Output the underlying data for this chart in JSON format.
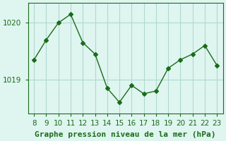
{
  "x": [
    8,
    9,
    10,
    11,
    12,
    13,
    14,
    15,
    16,
    17,
    18,
    19,
    20,
    21,
    22,
    23
  ],
  "y": [
    1019.35,
    1019.7,
    1020.0,
    1020.15,
    1019.65,
    1019.45,
    1018.85,
    1018.6,
    1018.9,
    1018.75,
    1018.8,
    1019.2,
    1019.35,
    1019.45,
    1019.6,
    1019.25
  ],
  "line_color": "#1a6b1a",
  "marker": "D",
  "marker_size": 3,
  "bg_color": "#dff5f0",
  "grid_color": "#b0d8d0",
  "xlabel": "Graphe pression niveau de la mer (hPa)",
  "xlabel_color": "#1a6b1a",
  "tick_color": "#1a6b1a",
  "axis_color": "#1a6b1a",
  "ylim": [
    1018.4,
    1020.35
  ],
  "xlim": [
    7.5,
    23.5
  ],
  "yticks": [
    1019,
    1020
  ],
  "xticks": [
    8,
    9,
    10,
    11,
    12,
    13,
    14,
    15,
    16,
    17,
    18,
    19,
    20,
    21,
    22,
    23
  ],
  "title_fontsize": 8,
  "tick_fontsize": 7.5
}
